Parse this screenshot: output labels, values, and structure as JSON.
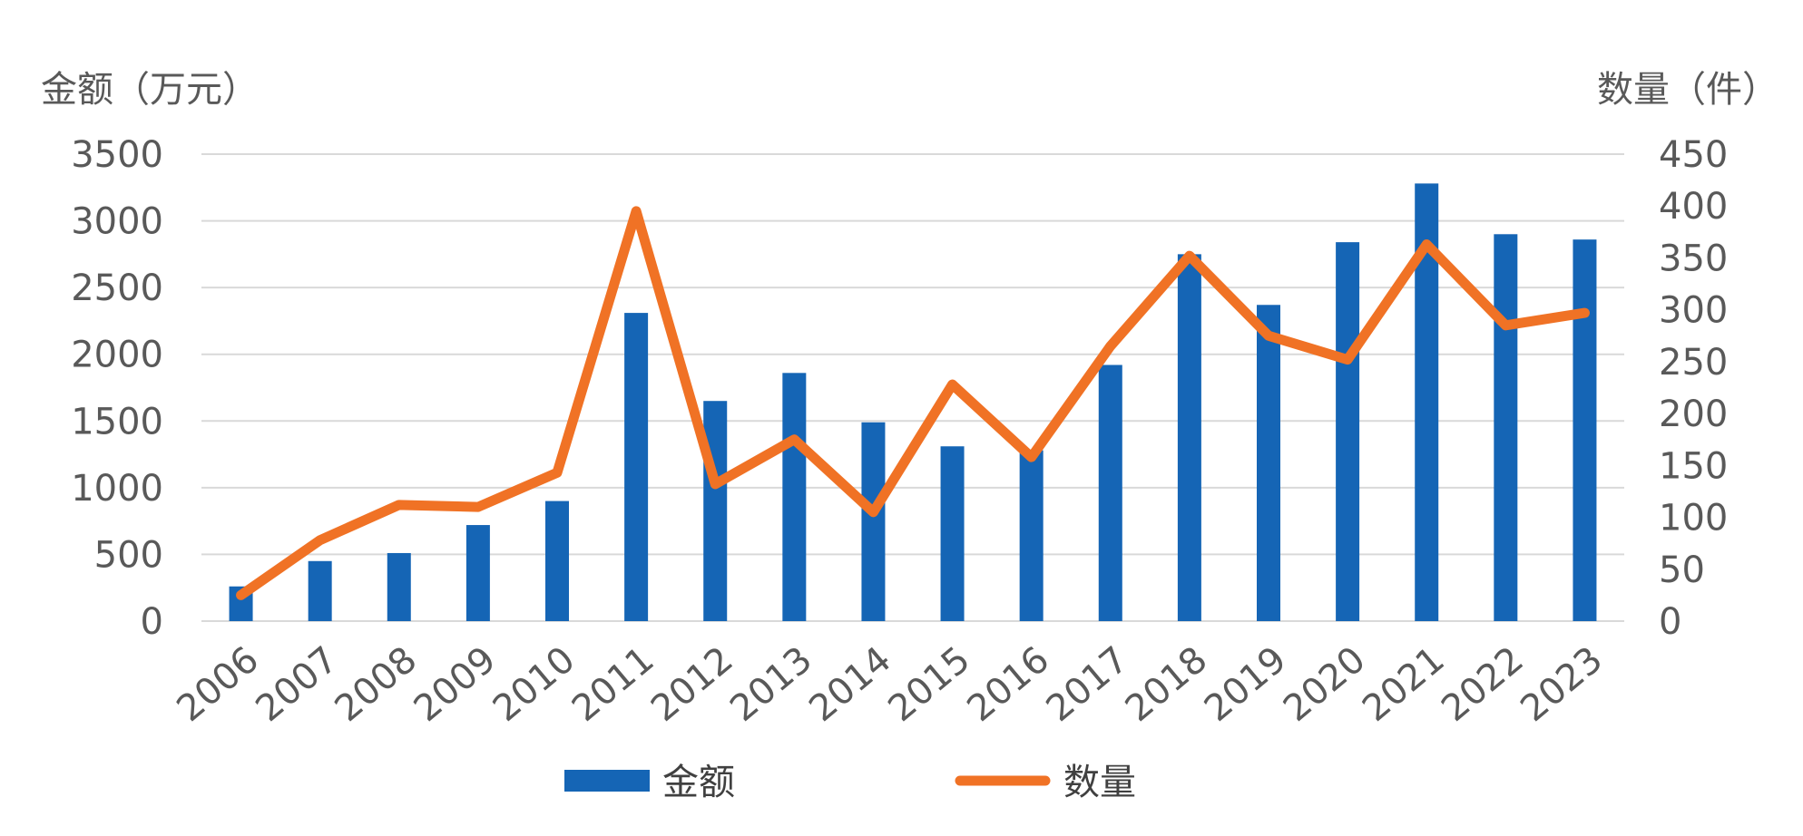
{
  "chart_data": {
    "type": "bar",
    "categories": [
      "2006",
      "2007",
      "2008",
      "2009",
      "2010",
      "2011",
      "2012",
      "2013",
      "2014",
      "2015",
      "2016",
      "2017",
      "2018",
      "2019",
      "2020",
      "2021",
      "2022",
      "2023"
    ],
    "series": [
      {
        "name": "金额",
        "type": "bar",
        "axis": "left",
        "color": "#1565b5",
        "values": [
          260,
          450,
          510,
          720,
          900,
          2310,
          1650,
          1860,
          1490,
          1310,
          1280,
          1920,
          2750,
          2370,
          2840,
          3280,
          2900,
          2860
        ]
      },
      {
        "name": "数量",
        "type": "line",
        "axis": "right",
        "color": "#f07225",
        "values": [
          25,
          78,
          112,
          110,
          143,
          395,
          132,
          175,
          105,
          228,
          158,
          265,
          352,
          275,
          252,
          363,
          285,
          297
        ]
      }
    ],
    "ylabel": "金额（万元）",
    "y2label": "数量（件）",
    "ylim": [
      0,
      3500
    ],
    "y2lim": [
      0,
      450
    ],
    "yticks": [
      "0",
      "500",
      "1000",
      "1500",
      "2000",
      "2500",
      "3000",
      "3500"
    ],
    "y2ticks": [
      "0",
      "50",
      "100",
      "150",
      "200",
      "250",
      "300",
      "350",
      "400",
      "450"
    ],
    "grid": true,
    "legend": "bottom"
  }
}
